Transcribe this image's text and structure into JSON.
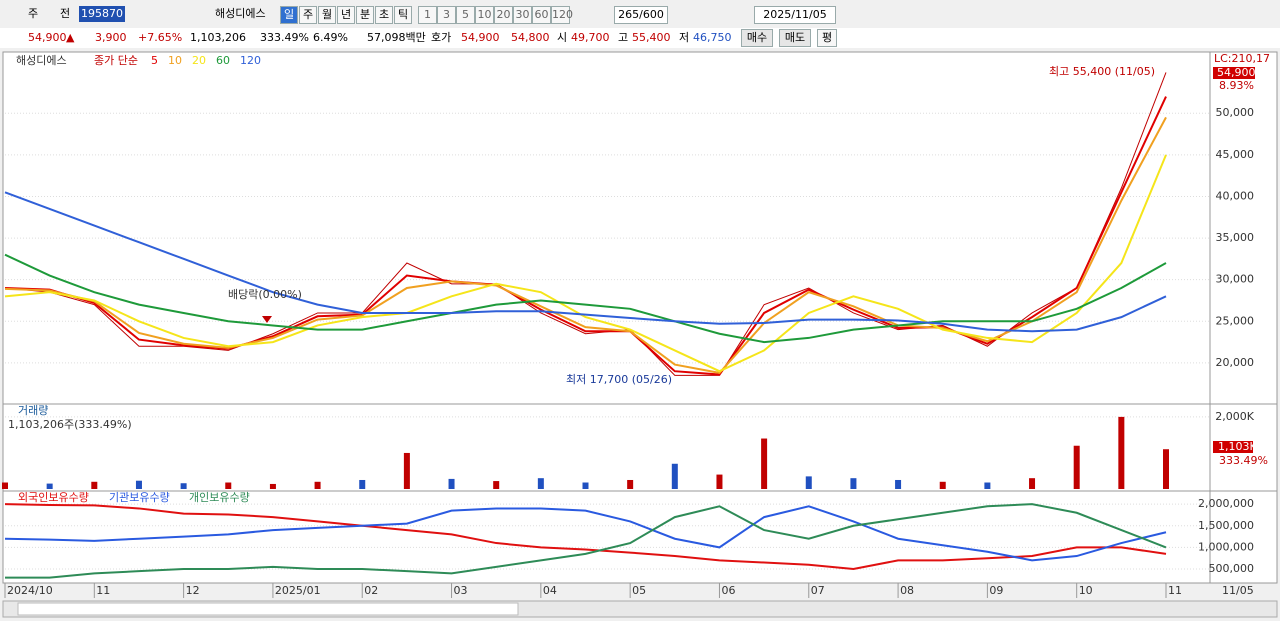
{
  "toolbar": {
    "market": "주",
    "prev": "전",
    "code": "195870",
    "name": "해성디에스",
    "periods": [
      "일",
      "주",
      "월",
      "년",
      "분",
      "초",
      "틱"
    ],
    "intervals": [
      "1",
      "3",
      "5",
      "10",
      "20",
      "30",
      "60",
      "120"
    ],
    "count": "265/600",
    "date": "2025/11/05"
  },
  "quote": {
    "price": "54,900",
    "arrow": "▲",
    "change": "3,900",
    "change_pct": "+7.65%",
    "volume": "1,103,206",
    "volume_pct": "333.49%",
    "turnover_pct": "6.49%",
    "amount": "57,098백만",
    "bid_label": "호가",
    "ask": "54,900",
    "bid": "54,800",
    "open_label": "시",
    "open": "49,700",
    "high_label": "고",
    "high": "55,400",
    "low_label": "저",
    "low": "46,750",
    "buy": "매수",
    "sell": "매도",
    "avg": "평"
  },
  "x_axis": {
    "categories": [
      "2024/10",
      null,
      "11",
      null,
      "12",
      null,
      "2025/01",
      null,
      "02",
      null,
      "03",
      null,
      "04",
      null,
      "05",
      null,
      "06",
      null,
      "07",
      null,
      "08",
      null,
      "09",
      null,
      "10",
      null,
      "11"
    ],
    "end_label": "11/05"
  },
  "chart_data": [
    {
      "type": "line",
      "title": "해성디에스",
      "legend_title": "종가 단순",
      "ylim": [
        15300,
        57000
      ],
      "yticks": [
        {
          "value": 20000,
          "label": "20,000"
        },
        {
          "value": 25000,
          "label": "25,000"
        },
        {
          "value": 30000,
          "label": "30,000"
        },
        {
          "value": 35000,
          "label": "35,000"
        },
        {
          "value": 40000,
          "label": "40,000"
        },
        {
          "value": 45000,
          "label": "45,000"
        },
        {
          "value": 50000,
          "label": "50,000"
        }
      ],
      "grid": true,
      "close": {
        "color": "#c00000",
        "values": [
          29000,
          28500,
          27000,
          22000,
          22000,
          21500,
          23500,
          26000,
          26000,
          32000,
          29500,
          29500,
          26000,
          23500,
          24000,
          18500,
          18500,
          27000,
          29000,
          26000,
          24000,
          24500,
          22000,
          26000,
          29000,
          41000,
          54900
        ]
      },
      "series": [
        {
          "name": "5",
          "color": "#e00000",
          "values": [
            29000,
            28800,
            27200,
            22800,
            22100,
            21700,
            23200,
            25600,
            25800,
            30500,
            29800,
            29400,
            26400,
            23800,
            23800,
            19000,
            18600,
            26000,
            28800,
            26400,
            24200,
            24300,
            22300,
            25500,
            29000,
            40500,
            52000
          ]
        },
        {
          "name": "10",
          "color": "#f0a020",
          "values": [
            28900,
            28700,
            27400,
            23600,
            22300,
            21800,
            23000,
            25200,
            25700,
            29000,
            29800,
            29300,
            26800,
            24300,
            23800,
            19800,
            18800,
            24800,
            28500,
            26800,
            24500,
            24200,
            22600,
            25000,
            28500,
            39500,
            49500
          ]
        },
        {
          "name": "20",
          "color": "#f5e51a",
          "values": [
            28000,
            28500,
            27500,
            25000,
            23000,
            22000,
            22500,
            24500,
            25500,
            26000,
            28000,
            29500,
            28500,
            25500,
            24000,
            21500,
            19000,
            21500,
            26000,
            28000,
            26500,
            24000,
            23000,
            22500,
            26000,
            32000,
            45000
          ]
        },
        {
          "name": "60",
          "color": "#1e9a3a",
          "values": [
            33000,
            30500,
            28500,
            27000,
            26000,
            25000,
            24500,
            24000,
            24000,
            25000,
            26000,
            27000,
            27500,
            27000,
            26500,
            25000,
            23500,
            22500,
            23000,
            24000,
            24500,
            25000,
            25000,
            25000,
            26500,
            29000,
            32000
          ]
        },
        {
          "name": "120",
          "color": "#3060d8",
          "values": [
            40500,
            38500,
            36500,
            34500,
            32500,
            30500,
            28500,
            27000,
            26000,
            26000,
            26000,
            26200,
            26200,
            25800,
            25400,
            25000,
            24700,
            24800,
            25200,
            25200,
            25100,
            24700,
            24000,
            23800,
            24000,
            25500,
            28000
          ]
        }
      ],
      "annotations": {
        "high": "최고 55,400 (11/05)",
        "low": "최저 17,700 (05/26)",
        "dividend": "배당락(0.00%)",
        "lc": "LC:210,17",
        "last": "54,900",
        "last_pct": "8.93%"
      }
    },
    {
      "type": "bar",
      "title": "거래량",
      "subtitle": "1,103,206주(333.49%)",
      "ylim": [
        0,
        2330000
      ],
      "yticks": [
        {
          "value": 2000000,
          "label": "2,000K"
        }
      ],
      "values": [
        180000,
        150000,
        200000,
        230000,
        160000,
        180000,
        140000,
        200000,
        250000,
        1000000,
        280000,
        220000,
        300000,
        180000,
        250000,
        700000,
        400000,
        1400000,
        350000,
        300000,
        250000,
        200000,
        180000,
        300000,
        1200000,
        2000000,
        1103206
      ],
      "colors": [
        "#c00000",
        "#2050c0",
        "#c00000",
        "#2050c0",
        "#2050c0",
        "#c00000",
        "#c00000",
        "#c00000",
        "#2050c0",
        "#c00000",
        "#2050c0",
        "#c00000",
        "#2050c0",
        "#2050c0",
        "#c00000",
        "#2050c0",
        "#c00000",
        "#c00000",
        "#2050c0",
        "#2050c0",
        "#2050c0",
        "#c00000",
        "#2050c0",
        "#c00000",
        "#c00000",
        "#c00000",
        "#c00000"
      ],
      "last_label": "1,103K",
      "last_pct": "333.49%"
    },
    {
      "type": "line",
      "ylim": [
        200000,
        2280000
      ],
      "yticks": [
        {
          "value": 500000,
          "label": "500,000"
        },
        {
          "value": 1000000,
          "label": "1,000,000"
        },
        {
          "value": 1500000,
          "label": "1,500,000"
        },
        {
          "value": 2000000,
          "label": "2,000,000"
        }
      ],
      "series": [
        {
          "name": "외국인보유수량",
          "color": "#e01010",
          "values": [
            2000000,
            1980000,
            1970000,
            1900000,
            1780000,
            1760000,
            1700000,
            1600000,
            1500000,
            1400000,
            1300000,
            1100000,
            1000000,
            950000,
            880000,
            800000,
            700000,
            650000,
            600000,
            500000,
            700000,
            700000,
            750000,
            800000,
            1000000,
            1000000,
            850000
          ]
        },
        {
          "name": "기관보유수량",
          "color": "#2a5ae0",
          "values": [
            1200000,
            1180000,
            1150000,
            1200000,
            1250000,
            1300000,
            1400000,
            1450000,
            1500000,
            1550000,
            1850000,
            1900000,
            1900000,
            1850000,
            1600000,
            1200000,
            1000000,
            1700000,
            1950000,
            1600000,
            1200000,
            1050000,
            900000,
            700000,
            800000,
            1100000,
            1350000
          ]
        },
        {
          "name": "개인보유수량",
          "color": "#2e8b57",
          "values": [
            300000,
            300000,
            400000,
            450000,
            500000,
            500000,
            550000,
            500000,
            500000,
            450000,
            400000,
            550000,
            700000,
            850000,
            1100000,
            1700000,
            1950000,
            1400000,
            1200000,
            1500000,
            1650000,
            1800000,
            1950000,
            2000000,
            1800000,
            1400000,
            1000000
          ]
        }
      ]
    }
  ]
}
